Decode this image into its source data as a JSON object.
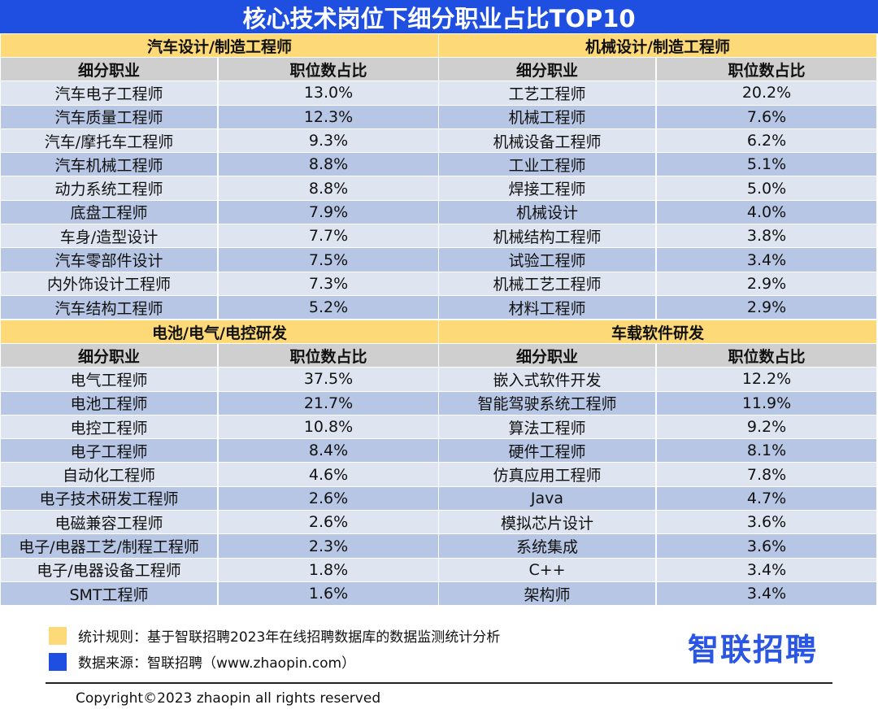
{
  "title": "核心技术岗位下细分职业占比TOP10",
  "column_headers": {
    "job": "细分职业",
    "share": "职位数占比"
  },
  "sections": {
    "auto": {
      "title": "汽车设计/制造工程师",
      "rows": [
        [
          "汽车电子工程师",
          "13.0%"
        ],
        [
          "汽车质量工程师",
          "12.3%"
        ],
        [
          "汽车/摩托车工程师",
          "9.3%"
        ],
        [
          "汽车机械工程师",
          "8.8%"
        ],
        [
          "动力系统工程师",
          "8.8%"
        ],
        [
          "底盘工程师",
          "7.9%"
        ],
        [
          "车身/造型设计",
          "7.7%"
        ],
        [
          "汽车零部件设计",
          "7.5%"
        ],
        [
          "内外饰设计工程师",
          "7.3%"
        ],
        [
          "汽车结构工程师",
          "5.2%"
        ]
      ]
    },
    "mech": {
      "title": "机械设计/制造工程师",
      "rows": [
        [
          "工艺工程师",
          "20.2%"
        ],
        [
          "机械工程师",
          "7.6%"
        ],
        [
          "机械设备工程师",
          "6.2%"
        ],
        [
          "工业工程师",
          "5.1%"
        ],
        [
          "焊接工程师",
          "5.0%"
        ],
        [
          "机械设计",
          "4.0%"
        ],
        [
          "机械结构工程师",
          "3.8%"
        ],
        [
          "试验工程师",
          "3.4%"
        ],
        [
          "机械工艺工程师",
          "2.9%"
        ],
        [
          "材料工程师",
          "2.9%"
        ]
      ]
    },
    "battery": {
      "title": "电池/电气/电控研发",
      "rows": [
        [
          "电气工程师",
          "37.5%"
        ],
        [
          "电池工程师",
          "21.7%"
        ],
        [
          "电控工程师",
          "10.8%"
        ],
        [
          "电子工程师",
          "8.4%"
        ],
        [
          "自动化工程师",
          "4.6%"
        ],
        [
          "电子技术研发工程师",
          "2.6%"
        ],
        [
          "电磁兼容工程师",
          "2.6%"
        ],
        [
          "电子/电器工艺/制程工程师",
          "2.3%"
        ],
        [
          "电子/电器设备工程师",
          "1.8%"
        ],
        [
          "SMT工程师",
          "1.6%"
        ]
      ]
    },
    "software": {
      "title": "车载软件研发",
      "rows": [
        [
          "嵌入式软件开发",
          "12.2%"
        ],
        [
          "智能驾驶系统工程师",
          "11.9%"
        ],
        [
          "算法工程师",
          "9.2%"
        ],
        [
          "硬件工程师",
          "8.1%"
        ],
        [
          "仿真应用工程师",
          "7.8%"
        ],
        [
          "Java",
          "4.7%"
        ],
        [
          "模拟芯片设计",
          "3.6%"
        ],
        [
          "系统集成",
          "3.6%"
        ],
        [
          "C++",
          "3.4%"
        ],
        [
          "架构师",
          "3.4%"
        ]
      ]
    }
  },
  "legend": {
    "rule_text": "统计规则：基于智联招聘2023年在线招聘数据库的数据监测统计分析",
    "source_text": "数据来源：智联招聘（www.zhaopin.com）",
    "rule_color": "#fdd978",
    "source_color": "#1f4fe0"
  },
  "brand": "智联招聘",
  "copyright": "Copyright©2023 zhaopin all rights reserved"
}
